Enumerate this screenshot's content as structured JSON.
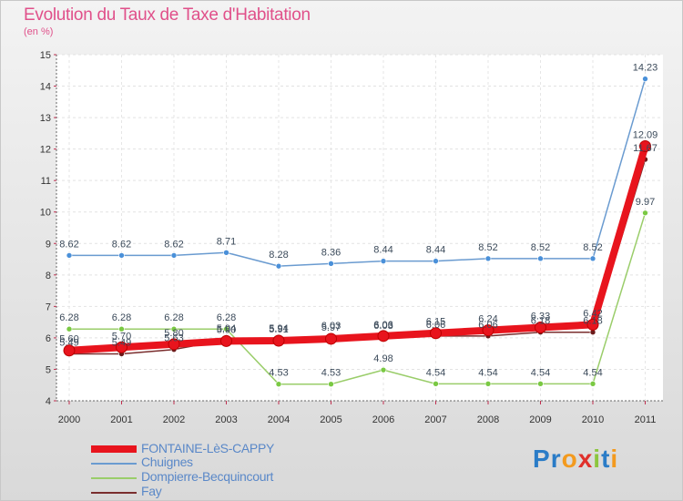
{
  "title": "Evolution du Taux de Taxe d'Habitation",
  "unit": "(en %)",
  "logo": {
    "text": "Proxiti",
    "letters": [
      "P",
      "r",
      "o",
      "x",
      "i",
      "t",
      "i"
    ],
    "colors": [
      "#2a7cc7",
      "#2a7cc7",
      "#f39a1e",
      "#e0302b",
      "#8cc63f",
      "#2a7cc7",
      "#f39a1e"
    ]
  },
  "chart_data": {
    "type": "line",
    "title": "Evolution du Taux de Taxe d'Habitation",
    "ylabel": "(en %)",
    "xlabel": "",
    "categories": [
      "2000",
      "2001",
      "2002",
      "2003",
      "2004",
      "2005",
      "2006",
      "2007",
      "2008",
      "2009",
      "2010",
      "2011"
    ],
    "ylim": [
      4,
      15
    ],
    "yticks": [
      "4",
      "5",
      "6",
      "7",
      "8",
      "9",
      "10",
      "11",
      "12",
      "13",
      "14",
      "15"
    ],
    "series": [
      {
        "name": "FONTAINE-LèS-CAPPY",
        "color": "#e8141d",
        "width": 8,
        "marker": "#e8141d",
        "values": [
          5.6,
          5.7,
          5.8,
          5.9,
          5.91,
          5.97,
          6.06,
          6.15,
          6.24,
          6.33,
          6.42,
          12.09
        ],
        "labels": [
          "5.60",
          "5.70",
          "5.80",
          "5.90",
          "5.91",
          "5.97",
          "6.06",
          "6.15",
          "6.24",
          "6.33",
          "6.42",
          "12.09"
        ]
      },
      {
        "name": "Chuignes",
        "color": "#6a9bd0",
        "width": 1.5,
        "marker": "#4a90d9",
        "values": [
          8.62,
          8.62,
          8.62,
          8.71,
          8.28,
          8.36,
          8.44,
          8.44,
          8.52,
          8.52,
          8.52,
          14.23
        ],
        "labels": [
          "8.62",
          "8.62",
          "8.62",
          "8.71",
          "8.28",
          "8.36",
          "8.44",
          "8.44",
          "8.52",
          "8.52",
          "8.52",
          "14.23"
        ]
      },
      {
        "name": "Dompierre-Becquincourt",
        "color": "#9acd6a",
        "width": 1.5,
        "marker": "#7ac943",
        "values": [
          6.28,
          6.28,
          6.28,
          6.28,
          4.53,
          4.53,
          4.98,
          4.54,
          4.54,
          4.54,
          4.54,
          9.97
        ],
        "labels": [
          "6.28",
          "6.28",
          "6.28",
          "6.28",
          "4.53",
          "4.53",
          "4.98",
          "4.54",
          "4.54",
          "4.54",
          "4.54",
          "9.97"
        ]
      },
      {
        "name": "Fay",
        "color": "#7a2e2e",
        "width": 1.5,
        "marker": "#6b1a1a",
        "values": [
          5.49,
          5.49,
          5.63,
          5.94,
          5.94,
          6.03,
          6.03,
          6.06,
          6.06,
          6.18,
          6.18,
          11.67
        ],
        "labels": [
          "5.49",
          "5.49",
          "5.63",
          "5.94",
          "5.94",
          "6.03",
          "6.03",
          "6.06",
          "6.06",
          "6.18",
          "6.18",
          "11.67"
        ]
      }
    ],
    "label_order": [
      1,
      2,
      3,
      0
    ]
  }
}
